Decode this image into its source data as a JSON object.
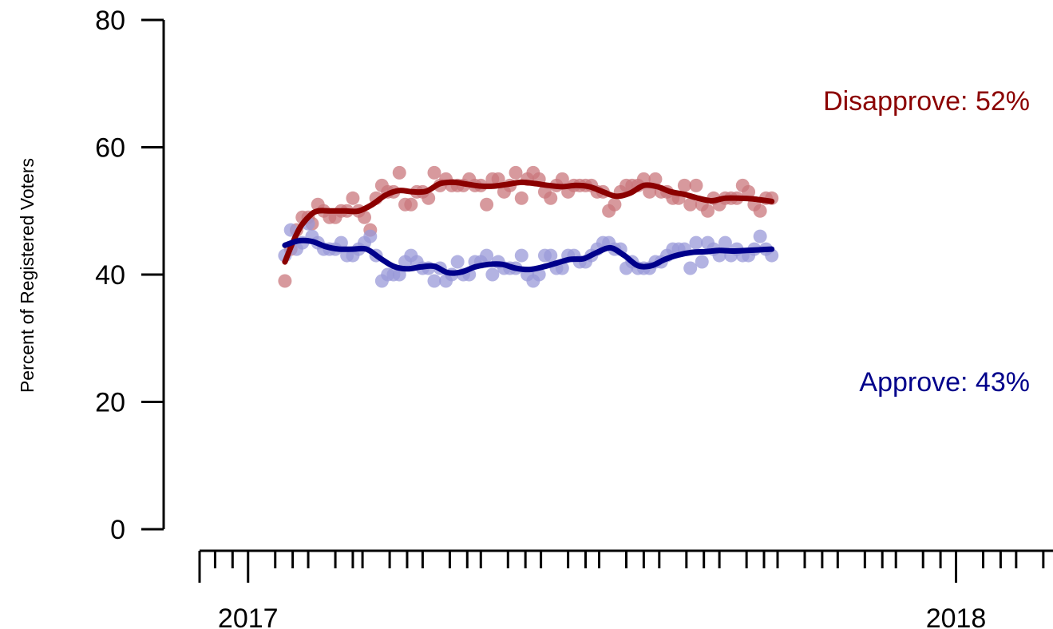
{
  "chart_data": {
    "type": "scatter",
    "title": "",
    "xlabel": "",
    "ylabel": "Percent of Registered Voters",
    "ylim": [
      0,
      80
    ],
    "yticks": [
      0,
      20,
      40,
      60,
      80
    ],
    "xlim": [
      "2016-12-07",
      "2018-02-20"
    ],
    "x_year_ticks": [
      {
        "date": "2017-01-01",
        "label": "2017"
      },
      {
        "date": "2018-01-01",
        "label": "2018"
      }
    ],
    "x_month_ticks": [
      "2017-02-01",
      "2017-03-01",
      "2017-04-01",
      "2017-05-01",
      "2017-06-01",
      "2017-07-01",
      "2017-08-01",
      "2017-09-01",
      "2017-10-01",
      "2017-11-01",
      "2017-12-01",
      "2018-02-01"
    ],
    "x_minor_ticks": [
      "2016-12-15",
      "2016-12-24",
      "2017-01-15",
      "2017-01-24",
      "2017-02-15",
      "2017-02-24",
      "2017-03-15",
      "2017-03-24",
      "2017-04-15",
      "2017-04-24",
      "2017-05-15",
      "2017-05-24",
      "2017-06-15",
      "2017-06-24",
      "2017-07-15",
      "2017-07-24",
      "2017-08-15",
      "2017-08-24",
      "2017-09-15",
      "2017-09-24",
      "2017-10-15",
      "2017-10-24",
      "2017-11-15",
      "2017-11-24",
      "2017-12-15",
      "2017-12-24",
      "2018-01-15",
      "2018-01-24",
      "2018-02-15"
    ],
    "grid": false,
    "legend": "none",
    "series": [
      {
        "name": "Disapprove: 52%",
        "label": "Disapprove: 52%",
        "color": "#8b0000",
        "point_color": "#c9777c",
        "points": [
          [
            "2017-01-20",
            39
          ],
          [
            "2017-01-23",
            44
          ],
          [
            "2017-01-26",
            47
          ],
          [
            "2017-01-29",
            49
          ],
          [
            "2017-02-01",
            49
          ],
          [
            "2017-02-03",
            48
          ],
          [
            "2017-02-06",
            51
          ],
          [
            "2017-02-09",
            50
          ],
          [
            "2017-02-12",
            49
          ],
          [
            "2017-02-15",
            49
          ],
          [
            "2017-02-18",
            50
          ],
          [
            "2017-02-21",
            50
          ],
          [
            "2017-02-24",
            52
          ],
          [
            "2017-02-27",
            50
          ],
          [
            "2017-03-02",
            49
          ],
          [
            "2017-03-05",
            47
          ],
          [
            "2017-03-08",
            52
          ],
          [
            "2017-03-11",
            54
          ],
          [
            "2017-03-14",
            53
          ],
          [
            "2017-03-17",
            53
          ],
          [
            "2017-03-20",
            56
          ],
          [
            "2017-03-23",
            51
          ],
          [
            "2017-03-26",
            51
          ],
          [
            "2017-03-29",
            53
          ],
          [
            "2017-04-01",
            53
          ],
          [
            "2017-04-04",
            52
          ],
          [
            "2017-04-07",
            56
          ],
          [
            "2017-04-10",
            54
          ],
          [
            "2017-04-13",
            55
          ],
          [
            "2017-04-16",
            54
          ],
          [
            "2017-04-19",
            54
          ],
          [
            "2017-04-22",
            54
          ],
          [
            "2017-04-25",
            55
          ],
          [
            "2017-04-28",
            54
          ],
          [
            "2017-05-01",
            54
          ],
          [
            "2017-05-04",
            51
          ],
          [
            "2017-05-07",
            55
          ],
          [
            "2017-05-10",
            55
          ],
          [
            "2017-05-13",
            53
          ],
          [
            "2017-05-16",
            54
          ],
          [
            "2017-05-19",
            56
          ],
          [
            "2017-05-22",
            52
          ],
          [
            "2017-05-25",
            55
          ],
          [
            "2017-05-28",
            56
          ],
          [
            "2017-05-31",
            55
          ],
          [
            "2017-06-03",
            53
          ],
          [
            "2017-06-06",
            52
          ],
          [
            "2017-06-09",
            54
          ],
          [
            "2017-06-12",
            55
          ],
          [
            "2017-06-15",
            53
          ],
          [
            "2017-06-18",
            54
          ],
          [
            "2017-06-21",
            54
          ],
          [
            "2017-06-24",
            54
          ],
          [
            "2017-06-27",
            54
          ],
          [
            "2017-06-30",
            53
          ],
          [
            "2017-07-03",
            53
          ],
          [
            "2017-07-06",
            50
          ],
          [
            "2017-07-09",
            51
          ],
          [
            "2017-07-12",
            53
          ],
          [
            "2017-07-15",
            54
          ],
          [
            "2017-07-18",
            54
          ],
          [
            "2017-07-21",
            54
          ],
          [
            "2017-07-24",
            55
          ],
          [
            "2017-07-27",
            53
          ],
          [
            "2017-07-30",
            55
          ],
          [
            "2017-08-02",
            53
          ],
          [
            "2017-08-05",
            53
          ],
          [
            "2017-08-08",
            52
          ],
          [
            "2017-08-11",
            52
          ],
          [
            "2017-08-14",
            54
          ],
          [
            "2017-08-17",
            51
          ],
          [
            "2017-08-20",
            54
          ],
          [
            "2017-08-23",
            51
          ],
          [
            "2017-08-26",
            50
          ],
          [
            "2017-08-29",
            52
          ],
          [
            "2017-09-01",
            51
          ],
          [
            "2017-09-04",
            52
          ],
          [
            "2017-09-07",
            52
          ],
          [
            "2017-09-10",
            52
          ],
          [
            "2017-09-13",
            54
          ],
          [
            "2017-09-16",
            53
          ],
          [
            "2017-09-19",
            51
          ],
          [
            "2017-09-22",
            50
          ],
          [
            "2017-09-25",
            52
          ],
          [
            "2017-09-28",
            52
          ]
        ],
        "trend": [
          [
            "2017-01-20",
            42
          ],
          [
            "2017-01-24",
            45
          ],
          [
            "2017-01-28",
            47.5
          ],
          [
            "2017-02-02",
            49.3
          ],
          [
            "2017-02-06",
            50
          ],
          [
            "2017-02-13",
            50
          ],
          [
            "2017-02-20",
            50
          ],
          [
            "2017-02-27",
            50
          ],
          [
            "2017-03-06",
            51
          ],
          [
            "2017-03-13",
            52.5
          ],
          [
            "2017-03-20",
            53.2
          ],
          [
            "2017-03-27",
            53
          ],
          [
            "2017-04-03",
            53.1
          ],
          [
            "2017-04-10",
            54.3
          ],
          [
            "2017-04-17",
            54.5
          ],
          [
            "2017-04-24",
            54.2
          ],
          [
            "2017-05-01",
            53.9
          ],
          [
            "2017-05-08",
            53.9
          ],
          [
            "2017-05-15",
            54.2
          ],
          [
            "2017-05-22",
            54.5
          ],
          [
            "2017-05-29",
            54.3
          ],
          [
            "2017-06-05",
            54
          ],
          [
            "2017-06-12",
            53.8
          ],
          [
            "2017-06-19",
            54
          ],
          [
            "2017-06-26",
            53.8
          ],
          [
            "2017-07-03",
            53
          ],
          [
            "2017-07-10",
            52.3
          ],
          [
            "2017-07-17",
            52.8
          ],
          [
            "2017-07-24",
            54
          ],
          [
            "2017-07-31",
            53.8
          ],
          [
            "2017-08-07",
            53
          ],
          [
            "2017-08-14",
            52.6
          ],
          [
            "2017-08-21",
            52
          ],
          [
            "2017-08-28",
            51.6
          ],
          [
            "2017-09-04",
            52
          ],
          [
            "2017-09-11",
            52
          ],
          [
            "2017-09-18",
            51.9
          ],
          [
            "2017-09-28",
            51.5
          ]
        ]
      },
      {
        "name": "Approve: 43%",
        "label": "Approve: 43%",
        "color": "#00008b",
        "point_color": "#9a9ad8",
        "points": [
          [
            "2017-01-20",
            43
          ],
          [
            "2017-01-23",
            47
          ],
          [
            "2017-01-26",
            44
          ],
          [
            "2017-01-29",
            45
          ],
          [
            "2017-02-01",
            48
          ],
          [
            "2017-02-03",
            46
          ],
          [
            "2017-02-06",
            45
          ],
          [
            "2017-02-09",
            44
          ],
          [
            "2017-02-12",
            44
          ],
          [
            "2017-02-15",
            44
          ],
          [
            "2017-02-18",
            45
          ],
          [
            "2017-02-21",
            43
          ],
          [
            "2017-02-24",
            43
          ],
          [
            "2017-02-27",
            44
          ],
          [
            "2017-03-02",
            45
          ],
          [
            "2017-03-05",
            46
          ],
          [
            "2017-03-08",
            43
          ],
          [
            "2017-03-11",
            39
          ],
          [
            "2017-03-14",
            40
          ],
          [
            "2017-03-17",
            40
          ],
          [
            "2017-03-20",
            40
          ],
          [
            "2017-03-23",
            42
          ],
          [
            "2017-03-26",
            43
          ],
          [
            "2017-03-29",
            42
          ],
          [
            "2017-04-01",
            41
          ],
          [
            "2017-04-04",
            41
          ],
          [
            "2017-04-07",
            39
          ],
          [
            "2017-04-10",
            41
          ],
          [
            "2017-04-13",
            39
          ],
          [
            "2017-04-16",
            40
          ],
          [
            "2017-04-19",
            42
          ],
          [
            "2017-04-22",
            40
          ],
          [
            "2017-04-25",
            40
          ],
          [
            "2017-04-28",
            42
          ],
          [
            "2017-05-01",
            42
          ],
          [
            "2017-05-04",
            43
          ],
          [
            "2017-05-07",
            40
          ],
          [
            "2017-05-10",
            42
          ],
          [
            "2017-05-13",
            41
          ],
          [
            "2017-05-16",
            41
          ],
          [
            "2017-05-19",
            41
          ],
          [
            "2017-05-22",
            43
          ],
          [
            "2017-05-25",
            40
          ],
          [
            "2017-05-28",
            39
          ],
          [
            "2017-05-31",
            40
          ],
          [
            "2017-06-03",
            43
          ],
          [
            "2017-06-06",
            43
          ],
          [
            "2017-06-09",
            41
          ],
          [
            "2017-06-12",
            41
          ],
          [
            "2017-06-15",
            43
          ],
          [
            "2017-06-18",
            43
          ],
          [
            "2017-06-21",
            42
          ],
          [
            "2017-06-24",
            42
          ],
          [
            "2017-06-27",
            43
          ],
          [
            "2017-06-30",
            44
          ],
          [
            "2017-07-03",
            45
          ],
          [
            "2017-07-06",
            45
          ],
          [
            "2017-07-09",
            44
          ],
          [
            "2017-07-12",
            44
          ],
          [
            "2017-07-15",
            41
          ],
          [
            "2017-07-18",
            42
          ],
          [
            "2017-07-21",
            41
          ],
          [
            "2017-07-24",
            41
          ],
          [
            "2017-07-27",
            41
          ],
          [
            "2017-07-30",
            42
          ],
          [
            "2017-08-02",
            42
          ],
          [
            "2017-08-05",
            43
          ],
          [
            "2017-08-08",
            44
          ],
          [
            "2017-08-11",
            44
          ],
          [
            "2017-08-14",
            44
          ],
          [
            "2017-08-17",
            41
          ],
          [
            "2017-08-20",
            45
          ],
          [
            "2017-08-23",
            42
          ],
          [
            "2017-08-26",
            45
          ],
          [
            "2017-08-29",
            44
          ],
          [
            "2017-09-01",
            43
          ],
          [
            "2017-09-04",
            45
          ],
          [
            "2017-09-07",
            43
          ],
          [
            "2017-09-10",
            44
          ],
          [
            "2017-09-13",
            43
          ],
          [
            "2017-09-16",
            43
          ],
          [
            "2017-09-19",
            44
          ],
          [
            "2017-09-22",
            46
          ],
          [
            "2017-09-25",
            44
          ],
          [
            "2017-09-28",
            43
          ]
        ],
        "trend": [
          [
            "2017-01-20",
            44.6
          ],
          [
            "2017-01-27",
            45.3
          ],
          [
            "2017-02-03",
            45.2
          ],
          [
            "2017-02-10",
            44.4
          ],
          [
            "2017-02-17",
            44
          ],
          [
            "2017-02-24",
            44
          ],
          [
            "2017-03-03",
            44
          ],
          [
            "2017-03-10",
            42.6
          ],
          [
            "2017-03-17",
            41.3
          ],
          [
            "2017-03-24",
            40.9
          ],
          [
            "2017-03-31",
            41.2
          ],
          [
            "2017-04-07",
            41.3
          ],
          [
            "2017-04-14",
            40.3
          ],
          [
            "2017-04-21",
            40.4
          ],
          [
            "2017-04-28",
            41.2
          ],
          [
            "2017-05-05",
            41.6
          ],
          [
            "2017-05-12",
            41.6
          ],
          [
            "2017-05-19",
            41
          ],
          [
            "2017-05-26",
            40.8
          ],
          [
            "2017-06-02",
            41.2
          ],
          [
            "2017-06-09",
            41.8
          ],
          [
            "2017-06-16",
            42.4
          ],
          [
            "2017-06-23",
            42.5
          ],
          [
            "2017-06-30",
            43.5
          ],
          [
            "2017-07-07",
            44.2
          ],
          [
            "2017-07-14",
            43
          ],
          [
            "2017-07-21",
            41.4
          ],
          [
            "2017-07-28",
            41.4
          ],
          [
            "2017-08-04",
            42.4
          ],
          [
            "2017-08-11",
            43.1
          ],
          [
            "2017-08-18",
            43.5
          ],
          [
            "2017-08-25",
            43.6
          ],
          [
            "2017-09-01",
            43.8
          ],
          [
            "2017-09-08",
            43.7
          ],
          [
            "2017-09-15",
            43.8
          ],
          [
            "2017-09-22",
            43.9
          ],
          [
            "2017-09-28",
            44
          ]
        ]
      }
    ]
  }
}
